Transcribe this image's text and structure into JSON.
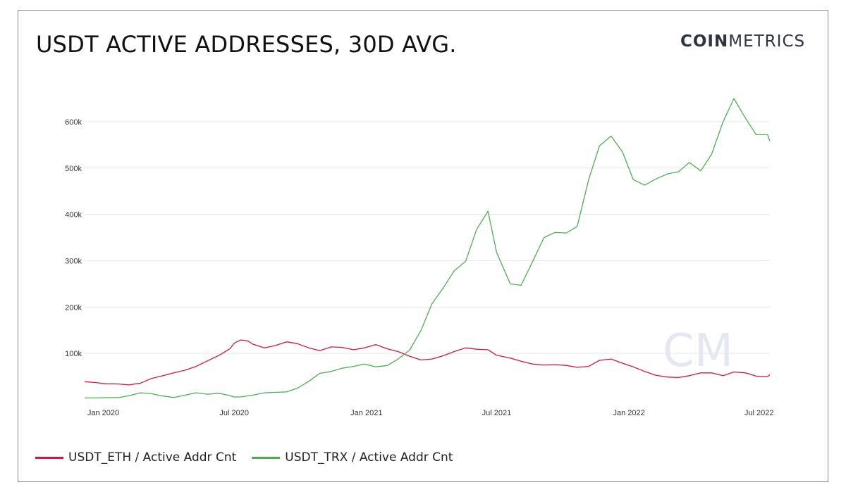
{
  "title": "USDT ACTIVE ADDRESSES, 30D AVG.",
  "brand": {
    "bold": "COIN",
    "light": "METRICS",
    "watermark": "CM"
  },
  "colors": {
    "eth": "#dc143c",
    "trx": "#4caf50",
    "grid": "#e6e6e6",
    "watermark": "#e3e8f3"
  },
  "chart_data": {
    "type": "line",
    "title": "USDT ACTIVE ADDRESSES, 30D AVG.",
    "xlabel": "",
    "ylabel": "",
    "x_range": [
      "2019-12-06",
      "2022-07-16"
    ],
    "ylim": [
      0,
      650000
    ],
    "grid": true,
    "legend_position": "bottom-left",
    "y_ticks": [
      {
        "value": 100000,
        "label": "100k"
      },
      {
        "value": 200000,
        "label": "200k"
      },
      {
        "value": 300000,
        "label": "300k"
      },
      {
        "value": 400000,
        "label": "400k"
      },
      {
        "value": 500000,
        "label": "500k"
      },
      {
        "value": 600000,
        "label": "600k"
      }
    ],
    "x_ticks": [
      {
        "date": "2020-01-01",
        "label": "Jan 2020"
      },
      {
        "date": "2020-07-01",
        "label": "Jul 2020"
      },
      {
        "date": "2021-01-01",
        "label": "Jan 2021"
      },
      {
        "date": "2021-07-01",
        "label": "Jul 2021"
      },
      {
        "date": "2022-01-01",
        "label": "Jan 2022"
      },
      {
        "date": "2022-07-01",
        "label": "Jul 2022"
      }
    ],
    "series": [
      {
        "name": "USDT_ETH / Active Addr Cnt",
        "color": "#dc143c",
        "points": [
          [
            "2019-12-06",
            39000
          ],
          [
            "2019-12-22",
            37000
          ],
          [
            "2020-01-05",
            34500
          ],
          [
            "2020-01-22",
            34000
          ],
          [
            "2020-02-06",
            32000
          ],
          [
            "2020-02-22",
            36000
          ],
          [
            "2020-03-08",
            46000
          ],
          [
            "2020-03-24",
            52000
          ],
          [
            "2020-04-08",
            58000
          ],
          [
            "2020-04-24",
            64000
          ],
          [
            "2020-05-09",
            72000
          ],
          [
            "2020-05-25",
            84000
          ],
          [
            "2020-06-10",
            96000
          ],
          [
            "2020-06-25",
            110000
          ],
          [
            "2020-07-01",
            122000
          ],
          [
            "2020-07-10",
            129000
          ],
          [
            "2020-07-20",
            127000
          ],
          [
            "2020-07-27",
            120000
          ],
          [
            "2020-08-12",
            112000
          ],
          [
            "2020-08-27",
            117000
          ],
          [
            "2020-09-12",
            125000
          ],
          [
            "2020-09-27",
            121000
          ],
          [
            "2020-10-13",
            112000
          ],
          [
            "2020-10-28",
            106000
          ],
          [
            "2020-11-13",
            114000
          ],
          [
            "2020-11-28",
            113000
          ],
          [
            "2020-12-14",
            108000
          ],
          [
            "2020-12-29",
            112000
          ],
          [
            "2021-01-14",
            119000
          ],
          [
            "2021-01-30",
            110000
          ],
          [
            "2021-02-14",
            104000
          ],
          [
            "2021-03-02",
            94000
          ],
          [
            "2021-03-18",
            86000
          ],
          [
            "2021-04-02",
            88000
          ],
          [
            "2021-04-18",
            95000
          ],
          [
            "2021-05-03",
            104000
          ],
          [
            "2021-05-19",
            112000
          ],
          [
            "2021-06-03",
            109000
          ],
          [
            "2021-06-19",
            108000
          ],
          [
            "2021-07-01",
            96000
          ],
          [
            "2021-07-20",
            90000
          ],
          [
            "2021-08-04",
            83000
          ],
          [
            "2021-08-20",
            77000
          ],
          [
            "2021-09-05",
            75000
          ],
          [
            "2021-09-20",
            76000
          ],
          [
            "2021-10-06",
            74000
          ],
          [
            "2021-10-21",
            70000
          ],
          [
            "2021-11-06",
            72000
          ],
          [
            "2021-11-21",
            85000
          ],
          [
            "2021-12-07",
            88000
          ],
          [
            "2021-12-23",
            79000
          ],
          [
            "2022-01-07",
            71000
          ],
          [
            "2022-01-23",
            61000
          ],
          [
            "2022-02-07",
            53000
          ],
          [
            "2022-02-23",
            49000
          ],
          [
            "2022-03-11",
            48000
          ],
          [
            "2022-03-26",
            52000
          ],
          [
            "2022-04-11",
            58000
          ],
          [
            "2022-04-26",
            58000
          ],
          [
            "2022-05-12",
            52000
          ],
          [
            "2022-05-27",
            60000
          ],
          [
            "2022-06-12",
            58000
          ],
          [
            "2022-06-27",
            51000
          ],
          [
            "2022-07-13",
            50000
          ],
          [
            "2022-07-16",
            54000
          ]
        ]
      },
      {
        "name": "USDT_TRX / Active Addr Cnt",
        "color": "#4caf50",
        "points": [
          [
            "2019-12-06",
            4000
          ],
          [
            "2019-12-22",
            4000
          ],
          [
            "2020-01-05",
            4500
          ],
          [
            "2020-01-22",
            4500
          ],
          [
            "2020-02-06",
            9000
          ],
          [
            "2020-02-22",
            15000
          ],
          [
            "2020-03-08",
            13000
          ],
          [
            "2020-03-24",
            8000
          ],
          [
            "2020-04-08",
            5000
          ],
          [
            "2020-04-24",
            10000
          ],
          [
            "2020-05-09",
            15000
          ],
          [
            "2020-05-25",
            12000
          ],
          [
            "2020-06-10",
            14000
          ],
          [
            "2020-06-25",
            9000
          ],
          [
            "2020-07-01",
            6000
          ],
          [
            "2020-07-10",
            6000
          ],
          [
            "2020-07-27",
            10000
          ],
          [
            "2020-08-12",
            15000
          ],
          [
            "2020-08-27",
            16000
          ],
          [
            "2020-09-12",
            17000
          ],
          [
            "2020-09-27",
            25000
          ],
          [
            "2020-10-13",
            40000
          ],
          [
            "2020-10-28",
            57000
          ],
          [
            "2020-11-13",
            61000
          ],
          [
            "2020-11-28",
            68000
          ],
          [
            "2020-12-14",
            72000
          ],
          [
            "2020-12-29",
            77000
          ],
          [
            "2021-01-14",
            71000
          ],
          [
            "2021-01-30",
            74000
          ],
          [
            "2021-02-14",
            88000
          ],
          [
            "2021-03-02",
            107000
          ],
          [
            "2021-03-18",
            150000
          ],
          [
            "2021-04-02",
            207000
          ],
          [
            "2021-04-18",
            242000
          ],
          [
            "2021-05-03",
            278000
          ],
          [
            "2021-05-19",
            299000
          ],
          [
            "2021-06-03",
            367000
          ],
          [
            "2021-06-19",
            407000
          ],
          [
            "2021-07-01",
            318000
          ],
          [
            "2021-07-20",
            250000
          ],
          [
            "2021-08-04",
            247000
          ],
          [
            "2021-08-20",
            298000
          ],
          [
            "2021-09-05",
            350000
          ],
          [
            "2021-09-20",
            361000
          ],
          [
            "2021-10-06",
            360000
          ],
          [
            "2021-10-21",
            374000
          ],
          [
            "2021-11-06",
            475000
          ],
          [
            "2021-11-21",
            548000
          ],
          [
            "2021-12-07",
            569000
          ],
          [
            "2021-12-23",
            535000
          ],
          [
            "2022-01-07",
            475000
          ],
          [
            "2022-01-23",
            463000
          ],
          [
            "2022-02-07",
            476000
          ],
          [
            "2022-02-23",
            487000
          ],
          [
            "2022-03-11",
            492000
          ],
          [
            "2022-03-26",
            512000
          ],
          [
            "2022-04-11",
            494000
          ],
          [
            "2022-04-26",
            530000
          ],
          [
            "2022-05-12",
            600000
          ],
          [
            "2022-05-27",
            650000
          ],
          [
            "2022-06-12",
            608000
          ],
          [
            "2022-06-27",
            572000
          ],
          [
            "2022-07-13",
            572000
          ],
          [
            "2022-07-16",
            558000
          ]
        ]
      }
    ]
  }
}
